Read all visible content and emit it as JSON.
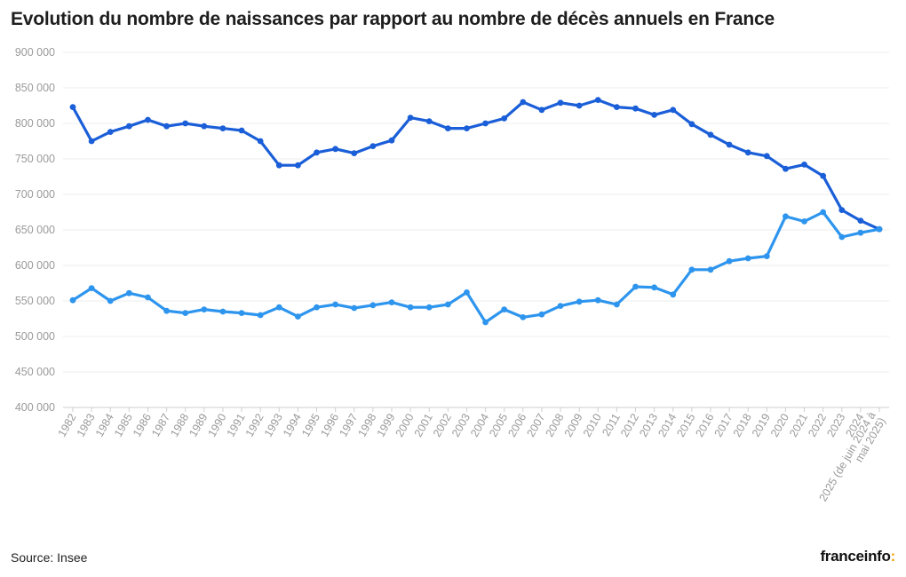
{
  "title": "Evolution du nombre de naissances par rapport au nombre de décès annuels en France",
  "source": "Source: Insee",
  "brand": {
    "name": "franceinfo",
    "suffix": ":"
  },
  "chart_data": {
    "type": "line",
    "title": "Evolution du nombre de naissances par rapport au nombre de décès annuels en France",
    "xlabel": "",
    "ylabel": "",
    "ylim": [
      400000,
      900000
    ],
    "yticks": [
      400000,
      450000,
      500000,
      550000,
      600000,
      650000,
      700000,
      750000,
      800000,
      850000,
      900000
    ],
    "ytick_labels": [
      "400 000",
      "450 000",
      "500 000",
      "550 000",
      "600 000",
      "650 000",
      "700 000",
      "750 000",
      "800 000",
      "850 000",
      "900 000"
    ],
    "grid": true,
    "legend": "none",
    "categories": [
      "1982",
      "1983",
      "1984",
      "1985",
      "1986",
      "1987",
      "1988",
      "1989",
      "1990",
      "1991",
      "1992",
      "1993",
      "1994",
      "1995",
      "1996",
      "1997",
      "1998",
      "1999",
      "2000",
      "2001",
      "2002",
      "2003",
      "2004",
      "2005",
      "2006",
      "2007",
      "2008",
      "2009",
      "2010",
      "2011",
      "2012",
      "2013",
      "2014",
      "2015",
      "2016",
      "2017",
      "2018",
      "2019",
      "2020",
      "2021",
      "2022",
      "2023",
      "2024",
      "2025 (de juin 2024 à mai 2025)"
    ],
    "series": [
      {
        "color": "#1a5ed8",
        "values": [
          823000,
          775000,
          788000,
          796000,
          805000,
          796000,
          800000,
          796000,
          793000,
          790000,
          775000,
          741000,
          741000,
          759000,
          764000,
          758000,
          768000,
          776000,
          808000,
          803000,
          793000,
          793000,
          800000,
          807000,
          830000,
          819000,
          829000,
          825000,
          833000,
          823000,
          821000,
          812000,
          819000,
          799000,
          784000,
          770000,
          759000,
          754000,
          736000,
          742000,
          726000,
          678000,
          663000,
          651000
        ]
      },
      {
        "color": "#2e95ee",
        "values": [
          551000,
          568000,
          550000,
          561000,
          555000,
          536000,
          533000,
          538000,
          535000,
          533000,
          530000,
          541000,
          528000,
          541000,
          545000,
          540000,
          544000,
          548000,
          541000,
          541000,
          545000,
          562000,
          520000,
          538000,
          527000,
          531000,
          543000,
          549000,
          551000,
          545000,
          570000,
          569000,
          559000,
          594000,
          594000,
          606000,
          610000,
          613000,
          669000,
          662000,
          675000,
          640000,
          646000,
          651000
        ]
      }
    ]
  }
}
